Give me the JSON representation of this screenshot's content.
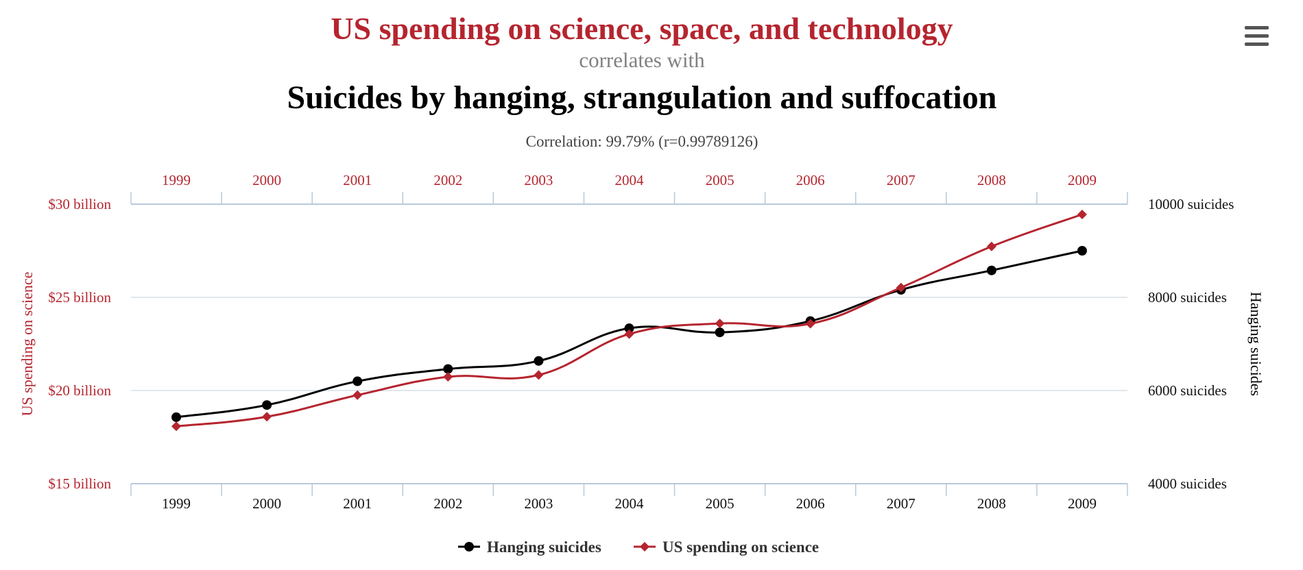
{
  "header": {
    "title_top": "US spending on science, space, and technology",
    "title_mid": "correlates with",
    "title_bottom": "Suicides by hanging, strangulation and suffocation",
    "correlation": "Correlation: 99.79% (r=0.99789126)"
  },
  "menu": {
    "icon": "hamburger-menu-icon"
  },
  "colors": {
    "red": "#b5252f",
    "black": "#000000",
    "grid": "#d6dde6",
    "axis": "#b8c8dc"
  },
  "chart_data": {
    "type": "line",
    "categories": [
      "1999",
      "2000",
      "2001",
      "2002",
      "2003",
      "2004",
      "2005",
      "2006",
      "2007",
      "2008",
      "2009"
    ],
    "left_axis": {
      "title": "US spending on science",
      "ticks": [
        "$15 billion",
        "$20 billion",
        "$25 billion",
        "$30 billion"
      ],
      "tick_values": [
        15,
        20,
        25,
        30
      ],
      "range": [
        15,
        30
      ]
    },
    "right_axis": {
      "title": "Hanging suicides",
      "ticks": [
        "4000 suicides",
        "6000 suicides",
        "8000 suicides",
        "10000 suicides"
      ],
      "tick_values": [
        4000,
        6000,
        8000,
        10000
      ],
      "range": [
        4000,
        10000
      ]
    },
    "series": [
      {
        "name": "Hanging suicides",
        "axis": "right",
        "color": "#000000",
        "marker": "circle",
        "values": [
          5427,
          5688,
          6198,
          6462,
          6635,
          7336,
          7248,
          7491,
          8161,
          8578,
          9000
        ]
      },
      {
        "name": "US spending on science",
        "axis": "left",
        "color": "#b5252f",
        "marker": "diamond",
        "values": [
          18.079,
          18.594,
          19.753,
          20.734,
          20.831,
          23.029,
          23.597,
          23.584,
          25.525,
          27.731,
          29.449
        ]
      }
    ],
    "grid": true,
    "legend_position": "bottom-center"
  }
}
